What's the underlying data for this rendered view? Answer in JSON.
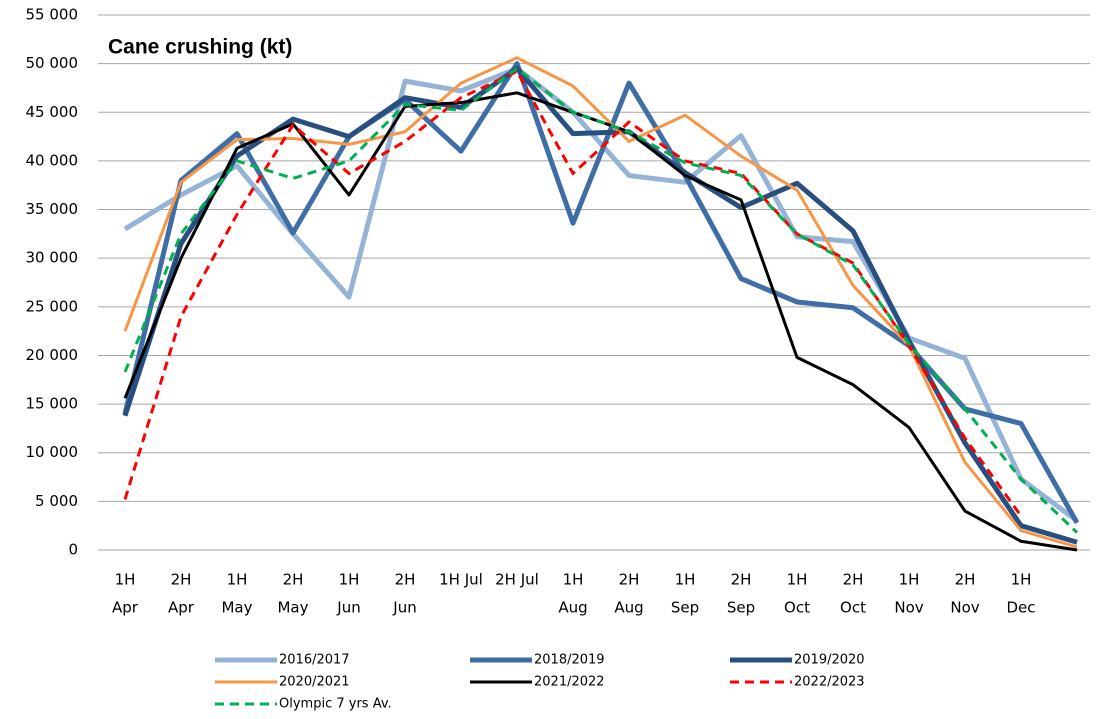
{
  "chart_data": {
    "type": "line",
    "title": "Cane crushing (kt)",
    "categories": [
      [
        "1H",
        "Apr"
      ],
      [
        "2H",
        "Apr"
      ],
      [
        "1H",
        "May"
      ],
      [
        "2H",
        "May"
      ],
      [
        "1H",
        "Jun"
      ],
      [
        "2H",
        "Jun"
      ],
      [
        "1H Jul"
      ],
      [
        "2H Jul"
      ],
      [
        "1H",
        "Aug"
      ],
      [
        "2H",
        "Aug"
      ],
      [
        "1H",
        "Sep"
      ],
      [
        "2H",
        "Sep"
      ],
      [
        "1H",
        "Oct"
      ],
      [
        "2H",
        "Oct"
      ],
      [
        "1H",
        "Nov"
      ],
      [
        "2H",
        "Nov"
      ],
      [
        "1H",
        "Dec"
      ],
      null
    ],
    "ylim": [
      0,
      55000
    ],
    "yticks": [
      {
        "value": 0,
        "label": "0"
      },
      {
        "value": 5000,
        "label": "5 000"
      },
      {
        "value": 10000,
        "label": "10 000"
      },
      {
        "value": 15000,
        "label": "15 000"
      },
      {
        "value": 20000,
        "label": "20 000"
      },
      {
        "value": 25000,
        "label": "25 000"
      },
      {
        "value": 30000,
        "label": "30 000"
      },
      {
        "value": 35000,
        "label": "35 000"
      },
      {
        "value": 40000,
        "label": "40 000"
      },
      {
        "value": 45000,
        "label": "45 000"
      },
      {
        "value": 50000,
        "label": "50 000"
      },
      {
        "value": 55000,
        "label": "55 000"
      }
    ],
    "grid": true,
    "series": [
      {
        "name": "2016/2017",
        "color": "#95b3d7",
        "width": 5,
        "dashed": false,
        "values": [
          33000,
          36500,
          39500,
          32500,
          26000,
          48200,
          47200,
          49500,
          45000,
          38500,
          37800,
          42600,
          32200,
          31700,
          21800,
          19700,
          7300,
          3000
        ]
      },
      {
        "name": "2018/2019",
        "color": "#3f6ea6",
        "width": 5,
        "dashed": false,
        "values": [
          14000,
          38000,
          42800,
          32600,
          42500,
          46300,
          41000,
          50000,
          33600,
          48000,
          38500,
          27900,
          25500,
          24900,
          21000,
          14500,
          13000,
          2800
        ]
      },
      {
        "name": "2019/2020",
        "color": "#284f80",
        "width": 5,
        "dashed": false,
        "values": [
          13800,
          31500,
          40500,
          44300,
          42500,
          46500,
          45500,
          49500,
          42800,
          43000,
          38800,
          35200,
          37700,
          32800,
          21500,
          11000,
          2500,
          800
        ]
      },
      {
        "name": "2020/2021",
        "color": "#f79646",
        "width": 3,
        "dashed": false,
        "values": [
          22500,
          37800,
          42200,
          42300,
          41700,
          43000,
          48000,
          50600,
          47700,
          42000,
          44700,
          40500,
          37000,
          27200,
          21000,
          9000,
          2000,
          300
        ]
      },
      {
        "name": "2021/2022",
        "color": "#000000",
        "width": 3,
        "dashed": false,
        "values": [
          15600,
          30000,
          41300,
          43800,
          36500,
          45600,
          46000,
          47000,
          45000,
          43000,
          38500,
          36000,
          19800,
          17000,
          12600,
          4000,
          900,
          0
        ]
      },
      {
        "name": "2022/2023",
        "color": "#ff0000",
        "width": 3,
        "dashed": true,
        "values": [
          5200,
          24000,
          34500,
          43700,
          38700,
          42000,
          46500,
          49200,
          38700,
          44000,
          40000,
          38700,
          32500,
          29500,
          21000,
          11500,
          3500,
          null
        ]
      },
      {
        "name": "Olympic 7 yrs Av.",
        "color": "#00b050",
        "width": 3,
        "dashed": true,
        "values": [
          18300,
          32500,
          40000,
          38200,
          40000,
          45800,
          45200,
          49500,
          45000,
          43000,
          39800,
          38500,
          32500,
          29300,
          21200,
          14500,
          7300,
          1800
        ]
      }
    ]
  }
}
